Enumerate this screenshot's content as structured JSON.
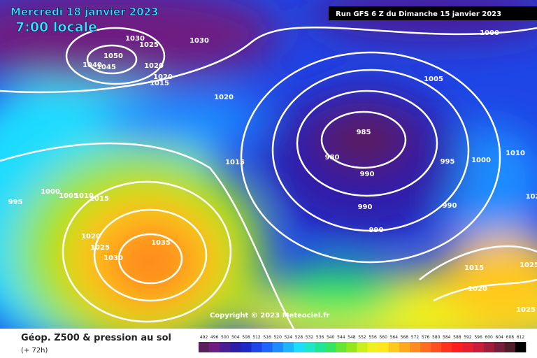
{
  "header": {
    "date": "Mercredi 18 janvier 2023",
    "time": "7:00 locale",
    "run": "Run GFS 6 Z du Dimanche 15 janvier 2023"
  },
  "isobars": [
    "1030",
    "1030",
    "1025",
    "1050",
    "1045",
    "1040",
    "1020",
    "1020",
    "1015",
    "1020",
    "1000",
    "1005",
    "985",
    "980",
    "990",
    "995",
    "1000",
    "1010",
    "1015",
    "1000",
    "1005",
    "1010",
    "1015",
    "995",
    "990",
    "990",
    "990",
    "1020",
    "1025",
    "1030",
    "1035",
    "1015",
    "1020",
    "1025",
    "1025",
    "102"
  ],
  "copyright": "Copyright © 2023 Meteociel.fr",
  "footer": {
    "title": "Géop. Z500 & pression au sol",
    "lead": "(+ 72h)"
  },
  "legend": {
    "labels": [
      "492",
      "496",
      "500",
      "504",
      "508",
      "512",
      "516",
      "520",
      "524",
      "528",
      "532",
      "536",
      "540",
      "544",
      "548",
      "552",
      "556",
      "560",
      "564",
      "568",
      "572",
      "576",
      "580",
      "584",
      "588",
      "592",
      "596",
      "600",
      "604",
      "608",
      "612"
    ],
    "colors": [
      "#5a1e5a",
      "#6e1e82",
      "#4b1e96",
      "#2d1eaa",
      "#1e28c8",
      "#1e46e6",
      "#1e64ff",
      "#1e8cff",
      "#1eb4ff",
      "#1edcff",
      "#1ee6c8",
      "#1ee696",
      "#32e664",
      "#64e632",
      "#96e61e",
      "#c8f01e",
      "#f0f01e",
      "#ffe61e",
      "#ffc81e",
      "#ffaa1e",
      "#ff8c1e",
      "#ff6e1e",
      "#ff501e",
      "#ff321e",
      "#ff1e1e",
      "#e61e32",
      "#c81e3c",
      "#a01e3c",
      "#781e3c",
      "#501e28",
      "#000000"
    ]
  }
}
